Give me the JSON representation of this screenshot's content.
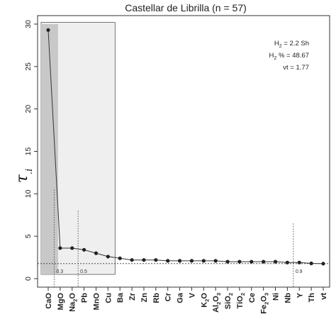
{
  "chart_data": {
    "type": "line",
    "title": "Castellar de Librilla (n = 57)",
    "ylabel": "τ",
    "ylabel_sub": ".i",
    "ylim": [
      -1,
      31
    ],
    "yticks": [
      0,
      5,
      10,
      15,
      20,
      25,
      30
    ],
    "categories": [
      {
        "base": "CaO"
      },
      {
        "base": "MgO"
      },
      {
        "base": "Na",
        "sub": "2",
        "post": "O"
      },
      {
        "base": "Pb"
      },
      {
        "base": "MnO"
      },
      {
        "base": "Cu"
      },
      {
        "base": "Ba"
      },
      {
        "base": "Zr"
      },
      {
        "base": "Zn"
      },
      {
        "base": "Rb"
      },
      {
        "base": "Cr"
      },
      {
        "base": "Ga"
      },
      {
        "base": "V"
      },
      {
        "base": "K",
        "sub": "2",
        "post": "O"
      },
      {
        "base": "Al",
        "sub": "2",
        "post": "O",
        "sub2": "3"
      },
      {
        "base": "SiO",
        "sub": "2"
      },
      {
        "base": "TiO",
        "sub": "2"
      },
      {
        "base": "Ce"
      },
      {
        "base": "Fe",
        "sub": "2",
        "post": "O",
        "sub2": "3"
      },
      {
        "base": "Ni"
      },
      {
        "base": "Nb"
      },
      {
        "base": "Y"
      },
      {
        "base": "Th"
      },
      {
        "base": "vt"
      }
    ],
    "values": [
      29.3,
      3.6,
      3.6,
      3.4,
      3.0,
      2.6,
      2.4,
      2.2,
      2.2,
      2.2,
      2.1,
      2.1,
      2.1,
      2.1,
      2.1,
      2.0,
      2.0,
      2.0,
      2.0,
      2.0,
      1.9,
      1.9,
      1.8,
      1.77
    ],
    "threshold_line": 1.77,
    "threshold_dotted_value": 1.77,
    "cut_lines": [
      {
        "after_index": 0,
        "label": "0.3",
        "top_value": 10.5
      },
      {
        "after_index": 2,
        "label": "0.5",
        "top_value": 8.0
      },
      {
        "after_index": 20,
        "label": "0.9",
        "top_value": 6.5
      }
    ],
    "boxes": [
      {
        "from_index": 0,
        "to_index": 1,
        "ymax": 30.0,
        "shade": "#c8c8c8"
      },
      {
        "from_index": 0,
        "to_index": 5,
        "ymax": 30.2,
        "shade": "#efefef"
      }
    ],
    "annotations": [
      {
        "parts": [
          {
            "t": "H"
          },
          {
            "t": "2",
            "sub": true
          },
          {
            "t": " = 2.2 Sh"
          }
        ]
      },
      {
        "parts": [
          {
            "t": "H"
          },
          {
            "t": "2",
            "sub": true
          },
          {
            "t": " % = 48.67"
          }
        ]
      },
      {
        "parts": [
          {
            "t": "vt = 1.77"
          }
        ]
      }
    ],
    "colors": {
      "line": "#333333",
      "point": "#222222"
    }
  }
}
